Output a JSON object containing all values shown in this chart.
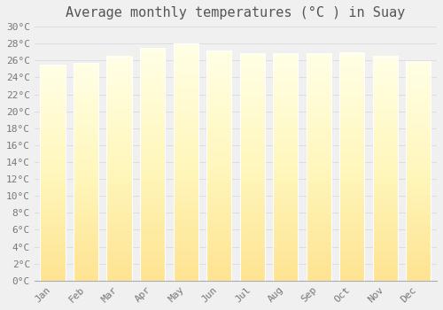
{
  "title": "Average monthly temperatures (°C ) in Suay",
  "months": [
    "Jan",
    "Feb",
    "Mar",
    "Apr",
    "May",
    "Jun",
    "Jul",
    "Aug",
    "Sep",
    "Oct",
    "Nov",
    "Dec"
  ],
  "values": [
    25.5,
    25.7,
    26.5,
    27.5,
    28.0,
    27.2,
    26.8,
    26.8,
    26.8,
    26.9,
    26.5,
    25.9
  ],
  "bar_color": "#FFA500",
  "bar_edge_color": "#FF8C00",
  "background_color": "#f0f0f0",
  "plot_bg_color": "#f0f0f0",
  "grid_color": "#dddddd",
  "ylim": [
    0,
    30
  ],
  "ytick_step": 2,
  "title_fontsize": 11,
  "tick_fontsize": 8,
  "font_family": "monospace",
  "bar_width": 0.75
}
